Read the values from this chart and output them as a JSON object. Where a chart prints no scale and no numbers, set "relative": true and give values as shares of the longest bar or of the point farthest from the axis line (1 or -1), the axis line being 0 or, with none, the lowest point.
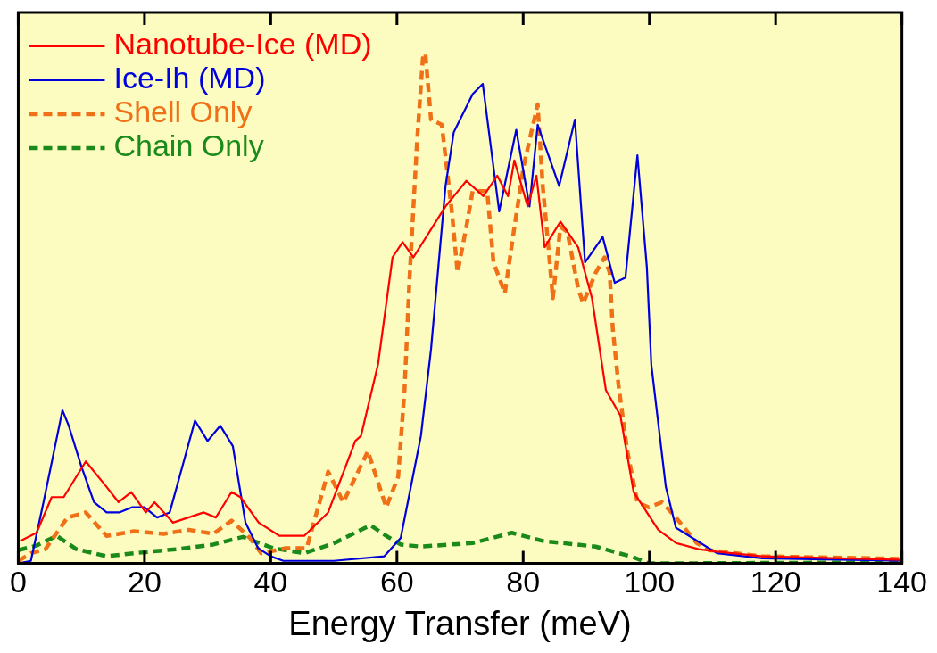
{
  "chart_data": {
    "type": "line",
    "relative": true,
    "xlabel": "Energy Transfer (meV)",
    "xlim": [
      0,
      140
    ],
    "xticks": [
      0,
      20,
      40,
      60,
      80,
      100,
      120,
      140
    ],
    "grid": false,
    "legend": "top left",
    "tick_labels": "x",
    "marker": "none",
    "series": [
      {
        "name": "Nanotube-Ice (MD)",
        "color": "#ff0000",
        "line_style": "solid",
        "x": [
          0.3,
          2.9,
          5.3,
          7.2,
          10.7,
          14,
          15.9,
          17.9,
          20.2,
          21.6,
          24.5,
          29.4,
          31.3,
          33.8,
          35.2,
          38.1,
          41.4,
          45.3,
          49.1,
          53.4,
          54.3,
          57,
          59.3,
          60.9,
          62.6,
          67.7,
          71,
          73.7,
          75.9,
          77.6,
          78.6,
          80.7,
          82.1,
          83.4,
          85.9,
          88.7,
          90.9,
          93.1,
          95.4,
          97.5,
          101.4,
          104.2,
          107.8,
          110.7,
          117.9,
          140
        ],
        "values": [
          0.044,
          0.06,
          0.13,
          0.13,
          0.2,
          0.15,
          0.12,
          0.14,
          0.1,
          0.12,
          0.08,
          0.1,
          0.09,
          0.14,
          0.13,
          0.08,
          0.054,
          0.054,
          0.1,
          0.24,
          0.25,
          0.39,
          0.6,
          0.63,
          0.6,
          0.7,
          0.75,
          0.72,
          0.76,
          0.72,
          0.79,
          0.7,
          0.76,
          0.62,
          0.67,
          0.62,
          0.52,
          0.34,
          0.29,
          0.14,
          0.066,
          0.04,
          0.028,
          0.023,
          0.014,
          0.007
        ]
      },
      {
        "name": "Ice-Ih (MD)",
        "color": "#0000dd",
        "line_style": "solid",
        "x": [
          0,
          2,
          4,
          6,
          7,
          8,
          10,
          12,
          14,
          16,
          18,
          20,
          22,
          24,
          26,
          28,
          30,
          32,
          34,
          36,
          38,
          40,
          42,
          50,
          58,
          60.6,
          63.8,
          65.4,
          67.7,
          69,
          72,
          73.6,
          76.2,
          78.9,
          81,
          82.3,
          85.7,
          88.2,
          89.8,
          92.6,
          94.5,
          96.2,
          98.1,
          99.6,
          100.3,
          102.6,
          104.2,
          110.7,
          117.9,
          140
        ],
        "values": [
          0,
          0.005,
          0.12,
          0.24,
          0.3,
          0.27,
          0.19,
          0.12,
          0.1,
          0.1,
          0.11,
          0.11,
          0.09,
          0.1,
          0.19,
          0.28,
          0.24,
          0.27,
          0.23,
          0.08,
          0.03,
          0.014,
          0.005,
          0.005,
          0.014,
          0.05,
          0.25,
          0.42,
          0.74,
          0.845,
          0.92,
          0.94,
          0.69,
          0.85,
          0.7,
          0.86,
          0.74,
          0.87,
          0.59,
          0.64,
          0.55,
          0.56,
          0.8,
          0.58,
          0.39,
          0.15,
          0.07,
          0.02,
          0.01,
          0.005
        ]
      },
      {
        "name": "Shell Only",
        "color": "#f07018",
        "line_style": "dashed",
        "x": [
          0,
          2,
          4.3,
          7.8,
          10.7,
          14,
          18.3,
          23,
          27,
          30.9,
          33.8,
          36.7,
          38.5,
          42.4,
          45.7,
          49.1,
          51.5,
          55.4,
          58.3,
          60.2,
          61.2,
          62,
          63.2,
          64.1,
          64.5,
          65.4,
          67.1,
          68.7,
          69.6,
          71,
          72,
          74.3,
          75.3,
          77.1,
          78.5,
          80.1,
          82.3,
          83.1,
          84,
          84.7,
          85.9,
          87,
          88.7,
          89.5,
          91.5,
          92.9,
          93.7,
          94.2,
          95.1,
          96.5,
          98.1,
          99.9,
          102,
          104.2,
          107.5,
          109.5,
          117.9,
          140
        ],
        "values": [
          0.005,
          0.02,
          0.028,
          0.09,
          0.1,
          0.054,
          0.063,
          0.058,
          0.066,
          0.058,
          0.084,
          0.05,
          0.02,
          0.03,
          0.03,
          0.18,
          0.12,
          0.22,
          0.11,
          0.17,
          0.34,
          0.56,
          0.83,
          0.99,
          1,
          0.87,
          0.86,
          0.69,
          0.57,
          0.66,
          0.73,
          0.73,
          0.59,
          0.53,
          0.65,
          0.78,
          0.9,
          0.74,
          0.62,
          0.52,
          0.66,
          0.65,
          0.54,
          0.51,
          0.57,
          0.6,
          0.57,
          0.46,
          0.35,
          0.22,
          0.12,
          0.11,
          0.12,
          0.09,
          0.04,
          0.026,
          0.014,
          0.009
        ]
      },
      {
        "name": "Chain Only",
        "color": "#1a8a1a",
        "line_style": "dashed",
        "x": [
          0,
          2.9,
          6.1,
          9.2,
          14,
          18.3,
          25.1,
          30.9,
          35.6,
          40.4,
          45.3,
          50.1,
          55.8,
          58.3,
          60.6,
          63.8,
          72,
          78.2,
          83.1,
          91.5,
          97.5,
          99.9,
          140
        ],
        "values": [
          0.026,
          0.035,
          0.054,
          0.028,
          0.014,
          0.02,
          0.028,
          0.037,
          0.052,
          0.03,
          0.02,
          0.04,
          0.075,
          0.054,
          0.037,
          0.033,
          0.04,
          0.06,
          0.044,
          0.033,
          0.012,
          0,
          0.002
        ]
      }
    ]
  }
}
